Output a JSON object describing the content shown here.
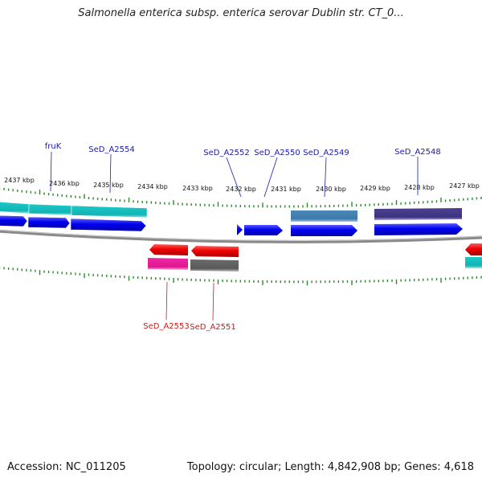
{
  "title": "Salmonella enterica subsp. enterica serovar Dublin str. CT_0...",
  "footer": {
    "accession": "Accession: NC_011205",
    "summary": "Topology: circular; Length: 4,842,908 bp; Genes: 4,618"
  },
  "ruler": {
    "labels": [
      "2437 kbp",
      "2436 kbp",
      "2435 kbp",
      "2434 kbp",
      "2433 kbp",
      "2432 kbp",
      "2431 kbp",
      "2430 kbp",
      "2429 kbp",
      "2428 kbp",
      "2427 kbp"
    ]
  },
  "genes_forward": [
    {
      "label": "fruK"
    },
    {
      "label": "SeD_A2554"
    },
    {
      "label": "SeD_A2552"
    },
    {
      "label": "SeD_A2550"
    },
    {
      "label": "SeD_A2549"
    },
    {
      "label": "SeD_A2548"
    }
  ],
  "genes_reverse": [
    {
      "label": "SeD_A2553"
    },
    {
      "label": "SeD_A2551"
    }
  ],
  "colors": {
    "forward_label": "#1a1aaa",
    "reverse_label": "#cc1a1a",
    "forward_cds": "#0000ee",
    "reverse_cds": "#ee0000",
    "teal_feature": "#18c2c2",
    "steel_feature": "#4a88b8",
    "indigo_feature": "#4a3f8c",
    "magenta_feature": "#e8259e",
    "gray_feature": "#666666",
    "backbone": "#888888",
    "ticks": "#2b8a2b"
  }
}
